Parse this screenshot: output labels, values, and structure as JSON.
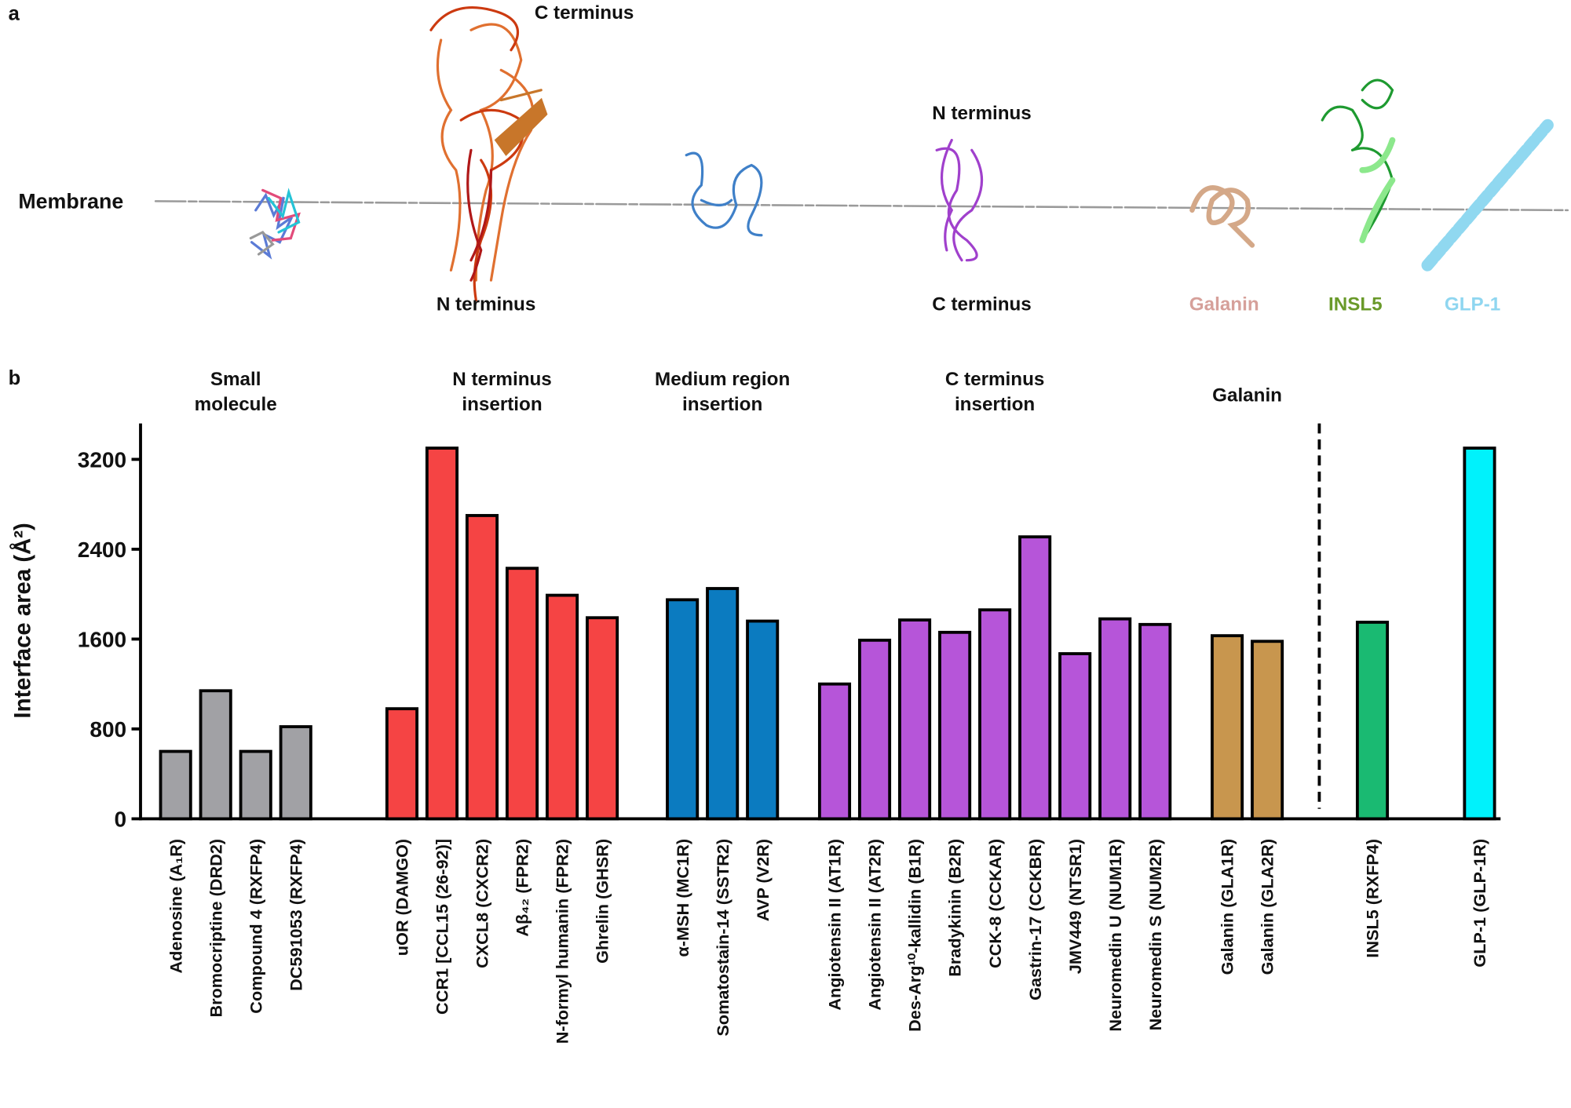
{
  "panel_a": {
    "panel_label": "a",
    "membrane": "Membrane",
    "top_c_terminus": "C terminus",
    "bottom_n_terminus": "N terminus",
    "top_n_terminus": "N terminus",
    "bottom_c_terminus": "C terminus",
    "galanin": "Galanin",
    "insl5": "INSL5",
    "glp1": "GLP-1"
  },
  "chart_data": {
    "type": "bar",
    "panel_label": "b",
    "y_label": "Interface area (Å²)",
    "ylim": [
      0,
      3520
    ],
    "yticks": [
      0,
      800,
      1600,
      2400,
      3200
    ],
    "groups": [
      {
        "name": "Small molecule",
        "color": "#a1a1a5",
        "categories": [
          "Adenosine (A₁R)",
          "Bromocriptine (DRD2)",
          "Compound 4 (RXFP4)",
          "DC591053 (RXFP4)"
        ],
        "values": [
          600,
          1140,
          600,
          820
        ]
      },
      {
        "name": "N terminus insertion",
        "color": "#f54444",
        "categories": [
          "uOR (DAMGO)",
          "CCR1 [CCL15 (26-92)]",
          "CXCL8 (CXCR2)",
          "Aβ₄₂ (FPR2)",
          "N-formyl humanin (FPR2)",
          "Ghrelin (GHSR)"
        ],
        "values": [
          980,
          3300,
          2700,
          2230,
          1990,
          1790
        ]
      },
      {
        "name": "Medium region insertion",
        "color": "#0b7bc0",
        "categories": [
          "α-MSH (MC1R)",
          "Somatostain-14 (SSTR2)",
          "AVP (V2R)"
        ],
        "values": [
          1950,
          2050,
          1760
        ]
      },
      {
        "name": "C terminus insertion",
        "color": "#b655d9",
        "categories": [
          "Angiotensin II (AT1R)",
          "Angiotensin II (AT2R)",
          "Des-Arg¹⁰-kallidin (B1R)",
          "Bradykinin (B2R)",
          "CCK-8 (CCKAR)",
          "Gastrin-17 (CCKBR)",
          "JMV449 (NTSR1)",
          "Neuromedin U (NUM1R)",
          "Neuromedin S (NUM2R)"
        ],
        "values": [
          1200,
          1590,
          1770,
          1660,
          1860,
          2510,
          1470,
          1780,
          1730
        ]
      },
      {
        "name": "Galanin",
        "color": "#c8964e",
        "categories": [
          "Galanin (GLA1R)",
          "Galanin (GLA2R)"
        ],
        "values": [
          1630,
          1580
        ]
      },
      {
        "color": "#1aba72",
        "categories": [
          "INSL5 (RXFP4)"
        ],
        "values": [
          1750
        ]
      },
      {
        "color": "#00f2fc",
        "categories": [
          "GLP-1 (GLP-1R)"
        ],
        "values": [
          3300
        ]
      }
    ]
  }
}
